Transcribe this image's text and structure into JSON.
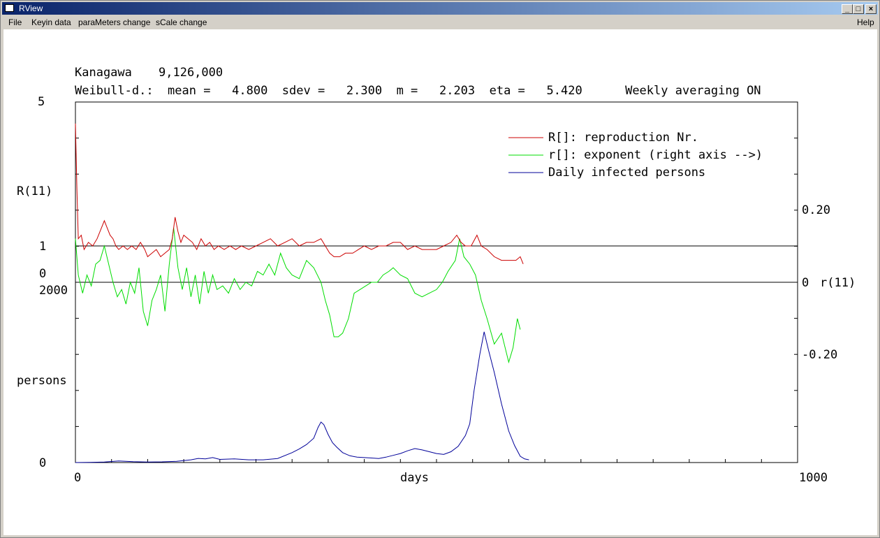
{
  "window": {
    "title": "RView"
  },
  "menu": {
    "file": "File",
    "keyin": "Keyin data",
    "params": "paraMeters change",
    "scale": "sCale change",
    "help": "Help"
  },
  "info": {
    "region": "Kanagawa",
    "population": "9,126,000",
    "dist_line": "Weibull-d.:  mean =   4.800  sdev =   2.300  m =   2.203  eta =   5.420      Weekly averaging ON"
  },
  "axes": {
    "r_top": "5",
    "r_label": "R(11)",
    "r_one": "1",
    "r_zero": "0",
    "persons_top": "2000",
    "persons_label": "persons",
    "persons_zero": "0",
    "x_start": "0",
    "x_label": "days",
    "x_end": "1000",
    "right_pos": "0.20",
    "right_zero": "0",
    "right_label": "r(11)",
    "right_neg": "-0.20"
  },
  "legend": {
    "R": "R[]: reproduction Nr.",
    "r": "r[]: exponent (right axis -->)",
    "daily": "Daily infected persons"
  },
  "colors": {
    "R": "#cc0000",
    "r": "#00dd00",
    "daily": "#000099"
  },
  "chart_data": {
    "type": "line",
    "xlim": [
      0,
      1000
    ],
    "series": [
      {
        "name": "R[]: reproduction Nr.",
        "axis": "left_R",
        "points": [
          [
            0,
            4.4
          ],
          [
            2,
            2.6
          ],
          [
            4,
            1.2
          ],
          [
            8,
            1.3
          ],
          [
            12,
            0.9
          ],
          [
            18,
            1.1
          ],
          [
            24,
            1.0
          ],
          [
            30,
            1.2
          ],
          [
            36,
            1.5
          ],
          [
            40,
            1.7
          ],
          [
            44,
            1.5
          ],
          [
            48,
            1.3
          ],
          [
            52,
            1.2
          ],
          [
            56,
            1.0
          ],
          [
            60,
            0.9
          ],
          [
            66,
            1.0
          ],
          [
            72,
            0.9
          ],
          [
            78,
            1.0
          ],
          [
            84,
            0.9
          ],
          [
            90,
            1.1
          ],
          [
            96,
            0.9
          ],
          [
            100,
            0.7
          ],
          [
            106,
            0.8
          ],
          [
            112,
            0.9
          ],
          [
            118,
            0.7
          ],
          [
            124,
            0.8
          ],
          [
            130,
            0.9
          ],
          [
            134,
            1.2
          ],
          [
            138,
            1.8
          ],
          [
            142,
            1.4
          ],
          [
            146,
            1.1
          ],
          [
            150,
            1.3
          ],
          [
            156,
            1.2
          ],
          [
            162,
            1.1
          ],
          [
            168,
            0.9
          ],
          [
            174,
            1.2
          ],
          [
            180,
            1.0
          ],
          [
            186,
            1.1
          ],
          [
            192,
            0.9
          ],
          [
            198,
            1.0
          ],
          [
            206,
            0.9
          ],
          [
            214,
            1.0
          ],
          [
            222,
            0.9
          ],
          [
            230,
            1.0
          ],
          [
            240,
            0.9
          ],
          [
            250,
            1.0
          ],
          [
            260,
            1.1
          ],
          [
            270,
            1.2
          ],
          [
            280,
            1.0
          ],
          [
            290,
            1.1
          ],
          [
            300,
            1.2
          ],
          [
            310,
            1.0
          ],
          [
            320,
            1.1
          ],
          [
            330,
            1.1
          ],
          [
            340,
            1.2
          ],
          [
            346,
            1.0
          ],
          [
            352,
            0.8
          ],
          [
            358,
            0.7
          ],
          [
            366,
            0.7
          ],
          [
            374,
            0.8
          ],
          [
            384,
            0.8
          ],
          [
            392,
            0.9
          ],
          [
            400,
            1.0
          ],
          [
            410,
            0.9
          ],
          [
            420,
            1.0
          ],
          [
            430,
            1.0
          ],
          [
            440,
            1.1
          ],
          [
            450,
            1.1
          ],
          [
            460,
            0.9
          ],
          [
            470,
            1.0
          ],
          [
            480,
            0.9
          ],
          [
            490,
            0.9
          ],
          [
            500,
            0.9
          ],
          [
            510,
            1.0
          ],
          [
            520,
            1.1
          ],
          [
            528,
            1.3
          ],
          [
            534,
            1.1
          ],
          [
            540,
            1.0
          ],
          [
            548,
            1.0
          ],
          [
            556,
            1.3
          ],
          [
            562,
            1.0
          ],
          [
            570,
            0.9
          ],
          [
            580,
            0.7
          ],
          [
            590,
            0.6
          ],
          [
            600,
            0.6
          ],
          [
            610,
            0.6
          ],
          [
            616,
            0.7
          ],
          [
            620,
            0.5
          ]
        ]
      },
      {
        "name": "r[]: exponent (right axis -->)",
        "axis": "right_r",
        "points": [
          [
            0,
            0.12
          ],
          [
            4,
            0.02
          ],
          [
            10,
            -0.03
          ],
          [
            16,
            0.02
          ],
          [
            22,
            -0.01
          ],
          [
            28,
            0.05
          ],
          [
            34,
            0.06
          ],
          [
            40,
            0.1
          ],
          [
            46,
            0.05
          ],
          [
            52,
            0.0
          ],
          [
            58,
            -0.04
          ],
          [
            64,
            -0.02
          ],
          [
            70,
            -0.06
          ],
          [
            76,
            0.0
          ],
          [
            82,
            -0.03
          ],
          [
            88,
            0.04
          ],
          [
            94,
            -0.08
          ],
          [
            100,
            -0.12
          ],
          [
            106,
            -0.05
          ],
          [
            112,
            -0.02
          ],
          [
            118,
            0.02
          ],
          [
            124,
            -0.08
          ],
          [
            130,
            0.05
          ],
          [
            136,
            0.15
          ],
          [
            142,
            0.04
          ],
          [
            148,
            -0.02
          ],
          [
            154,
            0.04
          ],
          [
            160,
            -0.04
          ],
          [
            166,
            0.02
          ],
          [
            172,
            -0.06
          ],
          [
            178,
            0.03
          ],
          [
            184,
            -0.03
          ],
          [
            190,
            0.02
          ],
          [
            196,
            -0.02
          ],
          [
            204,
            -0.01
          ],
          [
            212,
            -0.03
          ],
          [
            220,
            0.01
          ],
          [
            228,
            -0.02
          ],
          [
            236,
            0.0
          ],
          [
            244,
            -0.01
          ],
          [
            252,
            0.03
          ],
          [
            260,
            0.02
          ],
          [
            268,
            0.05
          ],
          [
            276,
            0.02
          ],
          [
            284,
            0.08
          ],
          [
            292,
            0.04
          ],
          [
            300,
            0.02
          ],
          [
            310,
            0.01
          ],
          [
            320,
            0.06
          ],
          [
            330,
            0.04
          ],
          [
            340,
            0.0
          ],
          [
            346,
            -0.05
          ],
          [
            352,
            -0.09
          ],
          [
            358,
            -0.15
          ],
          [
            364,
            -0.15
          ],
          [
            370,
            -0.14
          ],
          [
            378,
            -0.1
          ],
          [
            386,
            -0.03
          ],
          [
            394,
            -0.02
          ],
          [
            402,
            -0.01
          ],
          [
            410,
            0.0
          ],
          [
            418,
            0.0
          ],
          [
            426,
            0.02
          ],
          [
            434,
            0.03
          ],
          [
            440,
            0.04
          ],
          [
            450,
            0.02
          ],
          [
            460,
            0.01
          ],
          [
            470,
            -0.03
          ],
          [
            480,
            -0.04
          ],
          [
            490,
            -0.03
          ],
          [
            500,
            -0.02
          ],
          [
            508,
            0.0
          ],
          [
            516,
            0.03
          ],
          [
            526,
            0.06
          ],
          [
            532,
            0.12
          ],
          [
            538,
            0.07
          ],
          [
            546,
            0.05
          ],
          [
            554,
            0.02
          ],
          [
            562,
            -0.05
          ],
          [
            570,
            -0.1
          ],
          [
            580,
            -0.17
          ],
          [
            590,
            -0.14
          ],
          [
            600,
            -0.22
          ],
          [
            606,
            -0.18
          ],
          [
            612,
            -0.1
          ],
          [
            616,
            -0.13
          ]
        ]
      },
      {
        "name": "Daily infected persons",
        "axis": "left_persons",
        "points": [
          [
            0,
            0
          ],
          [
            20,
            2
          ],
          [
            40,
            6
          ],
          [
            60,
            18
          ],
          [
            80,
            10
          ],
          [
            100,
            6
          ],
          [
            120,
            8
          ],
          [
            140,
            14
          ],
          [
            160,
            30
          ],
          [
            170,
            46
          ],
          [
            180,
            40
          ],
          [
            190,
            55
          ],
          [
            200,
            35
          ],
          [
            220,
            40
          ],
          [
            240,
            30
          ],
          [
            260,
            30
          ],
          [
            280,
            45
          ],
          [
            300,
            110
          ],
          [
            310,
            150
          ],
          [
            320,
            200
          ],
          [
            330,
            270
          ],
          [
            336,
            390
          ],
          [
            340,
            450
          ],
          [
            344,
            420
          ],
          [
            350,
            310
          ],
          [
            356,
            220
          ],
          [
            362,
            170
          ],
          [
            370,
            110
          ],
          [
            380,
            75
          ],
          [
            390,
            60
          ],
          [
            400,
            55
          ],
          [
            410,
            50
          ],
          [
            420,
            45
          ],
          [
            430,
            60
          ],
          [
            440,
            80
          ],
          [
            450,
            100
          ],
          [
            460,
            130
          ],
          [
            470,
            155
          ],
          [
            480,
            140
          ],
          [
            490,
            120
          ],
          [
            500,
            100
          ],
          [
            510,
            90
          ],
          [
            520,
            120
          ],
          [
            530,
            180
          ],
          [
            540,
            300
          ],
          [
            546,
            430
          ],
          [
            552,
            800
          ],
          [
            560,
            1200
          ],
          [
            566,
            1450
          ],
          [
            572,
            1250
          ],
          [
            580,
            1000
          ],
          [
            590,
            650
          ],
          [
            600,
            350
          ],
          [
            608,
            190
          ],
          [
            616,
            70
          ],
          [
            622,
            40
          ],
          [
            628,
            30
          ]
        ]
      }
    ]
  }
}
